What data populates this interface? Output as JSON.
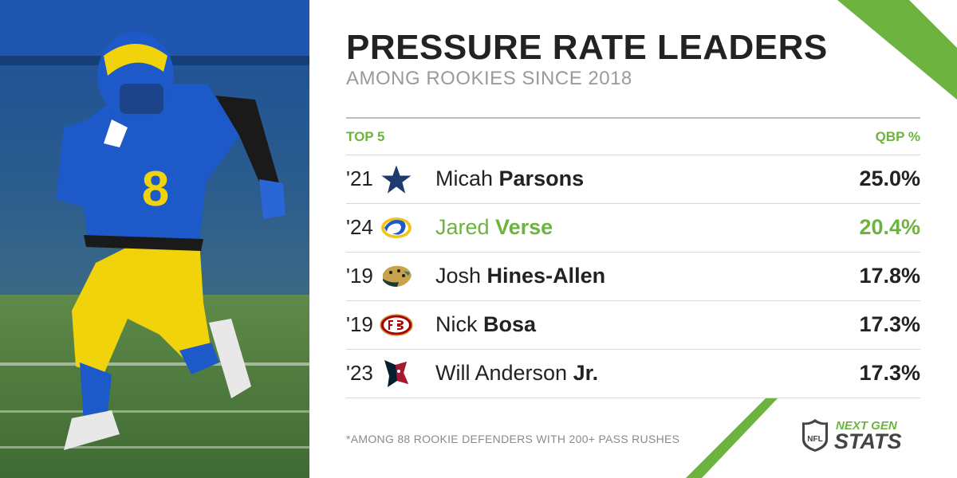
{
  "header": {
    "title": "PRESSURE RATE LEADERS",
    "subtitle": "AMONG ROOKIES SINCE 2018"
  },
  "table": {
    "left_label": "TOP 5",
    "right_label": "QBP %",
    "rows": [
      {
        "year": "'21",
        "team_icon": "cowboys-star-icon",
        "first": "Micah ",
        "last": "Parsons",
        "value": "25.0%"
      },
      {
        "year": "'24",
        "team_icon": "rams-horn-icon",
        "first": "Jared ",
        "last": "Verse",
        "value": "20.4%"
      },
      {
        "year": "'19",
        "team_icon": "jaguars-icon",
        "first": "Josh ",
        "last": "Hines-Allen",
        "value": "17.8%"
      },
      {
        "year": "'19",
        "team_icon": "49ers-icon",
        "first": "Nick ",
        "last": "Bosa",
        "value": "17.3%"
      },
      {
        "year": "'23",
        "team_icon": "texans-icon",
        "first": "Will Anderson ",
        "last": "Jr.",
        "value": "17.3%"
      }
    ]
  },
  "footnote": "*AMONG 88 ROOKIE DEFENDERS WITH 200+ PASS RUSHES",
  "brand": {
    "line1": "NEXT GEN",
    "line2": "STATS",
    "league": "NFL"
  },
  "photo": {
    "jersey_number": "8"
  },
  "colors": {
    "accent": "#6db33f",
    "text": "#222222",
    "muted": "#9a9a9a"
  }
}
